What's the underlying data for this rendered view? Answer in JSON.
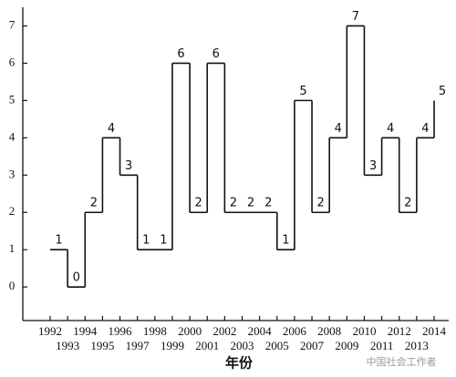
{
  "chart_data": {
    "type": "step",
    "x_label": "年份",
    "categories": [
      "1992",
      "1993",
      "1994",
      "1995",
      "1996",
      "1997",
      "1998",
      "1999",
      "2000",
      "2001",
      "2002",
      "2003",
      "2004",
      "2005",
      "2006",
      "2007",
      "2008",
      "2009",
      "2010",
      "2011",
      "2012",
      "2013",
      "2014"
    ],
    "values": [
      1,
      0,
      2,
      4,
      3,
      1,
      1,
      6,
      2,
      6,
      2,
      2,
      2,
      1,
      5,
      2,
      4,
      7,
      3,
      4,
      2,
      4,
      5
    ],
    "color": "#111111",
    "ylim": [
      -0.9,
      7.5
    ],
    "yticks": [
      0,
      1,
      2,
      3,
      4,
      5,
      6,
      7
    ],
    "watermark": "中国社会工作者"
  }
}
